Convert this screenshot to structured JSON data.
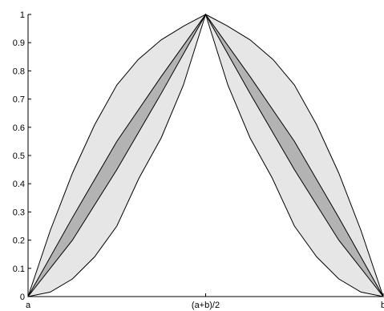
{
  "chart_data": {
    "type": "area",
    "title": "",
    "xlabel": "",
    "ylabel": "",
    "ylim": [
      0,
      1
    ],
    "xlim": [
      0,
      1
    ],
    "grid": false,
    "x_ticks": [
      {
        "value": 0,
        "label": "a"
      },
      {
        "value": 0.5,
        "label": "(a+b)/2"
      },
      {
        "value": 1,
        "label": "b"
      }
    ],
    "y_ticks": [
      {
        "value": 0,
        "label": "0"
      },
      {
        "value": 0.1,
        "label": "0.1"
      },
      {
        "value": 0.2,
        "label": "0.2"
      },
      {
        "value": 0.3,
        "label": "0.3"
      },
      {
        "value": 0.4,
        "label": "0.4"
      },
      {
        "value": 0.5,
        "label": "0.5"
      },
      {
        "value": 0.6,
        "label": "0.6"
      },
      {
        "value": 0.7,
        "label": "0.7"
      },
      {
        "value": 0.8,
        "label": "0.8"
      },
      {
        "value": 0.9,
        "label": "0.9"
      },
      {
        "value": 1,
        "label": "1"
      }
    ],
    "colors": {
      "outer_band": "#e6e6e6",
      "inner_band": "#b3b3b3",
      "line": "#000000"
    },
    "bands": [
      {
        "region": "outer",
        "upper": [
          [
            0,
            0
          ],
          [
            0.0625,
            0.234
          ],
          [
            0.125,
            0.4375
          ],
          [
            0.1875,
            0.609
          ],
          [
            0.25,
            0.75
          ],
          [
            0.31,
            0.84
          ],
          [
            0.375,
            0.91
          ],
          [
            0.44,
            0.96
          ],
          [
            0.5,
            1
          ],
          [
            0.56,
            0.96
          ],
          [
            0.625,
            0.91
          ],
          [
            0.69,
            0.84
          ],
          [
            0.75,
            0.75
          ],
          [
            0.8125,
            0.609
          ],
          [
            0.875,
            0.4375
          ],
          [
            0.9375,
            0.234
          ],
          [
            1,
            0
          ]
        ],
        "lower": [
          [
            0,
            0
          ],
          [
            0.0625,
            0.016
          ],
          [
            0.125,
            0.0625
          ],
          [
            0.1875,
            0.141
          ],
          [
            0.25,
            0.25
          ],
          [
            0.3125,
            0.42
          ],
          [
            0.375,
            0.5625
          ],
          [
            0.4375,
            0.75
          ],
          [
            0.5,
            1
          ],
          [
            0.5625,
            0.75
          ],
          [
            0.625,
            0.5625
          ],
          [
            0.6875,
            0.42
          ],
          [
            0.75,
            0.25
          ],
          [
            0.8125,
            0.141
          ],
          [
            0.875,
            0.0625
          ],
          [
            0.9375,
            0.016
          ],
          [
            1,
            0
          ]
        ]
      },
      {
        "region": "inner",
        "upper": [
          [
            0,
            0
          ],
          [
            0.125,
            0.28
          ],
          [
            0.25,
            0.55
          ],
          [
            0.375,
            0.78
          ],
          [
            0.5,
            1
          ],
          [
            0.625,
            0.78
          ],
          [
            0.75,
            0.55
          ],
          [
            0.875,
            0.28
          ],
          [
            1,
            0
          ]
        ],
        "lower": [
          [
            0,
            0
          ],
          [
            0.125,
            0.2
          ],
          [
            0.25,
            0.45
          ],
          [
            0.375,
            0.72
          ],
          [
            0.5,
            1
          ],
          [
            0.625,
            0.72
          ],
          [
            0.75,
            0.45
          ],
          [
            0.875,
            0.2
          ],
          [
            1,
            0
          ]
        ]
      }
    ]
  }
}
